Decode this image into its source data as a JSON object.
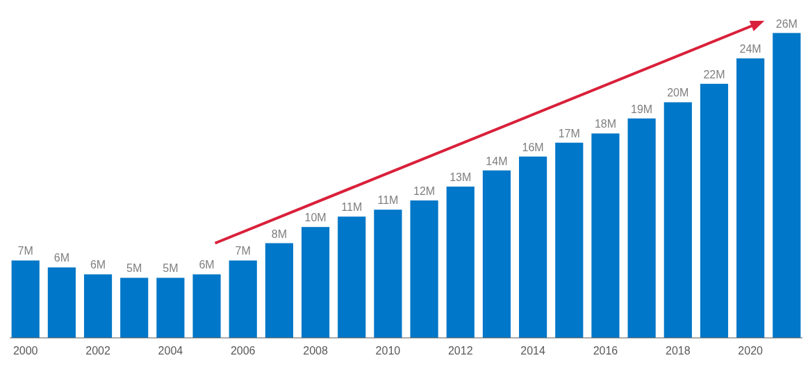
{
  "chart_data": {
    "type": "bar",
    "categories": [
      "2000",
      null,
      "2002",
      null,
      "2004",
      null,
      "2006",
      null,
      "2008",
      null,
      "2010",
      null,
      "2012",
      null,
      "2014",
      null,
      "2016",
      null,
      "2018",
      null,
      "2020",
      null
    ],
    "values": [
      6.7,
      6.1,
      5.5,
      5.2,
      5.2,
      5.5,
      6.7,
      8.2,
      9.6,
      10.5,
      11.1,
      11.9,
      13.1,
      14.5,
      15.7,
      16.9,
      17.7,
      19.0,
      20.4,
      22.0,
      24.2,
      26.4
    ],
    "value_labels": [
      "7M",
      "6M",
      "6M",
      "5M",
      "5M",
      "6M",
      "7M",
      "8M",
      "10M",
      "11M",
      "11M",
      "12M",
      "13M",
      "14M",
      "16M",
      "17M",
      "18M",
      "19M",
      "20M",
      "22M",
      "24M",
      "26M"
    ],
    "color": "#0077c8",
    "tick_labels": "x"
  }
}
